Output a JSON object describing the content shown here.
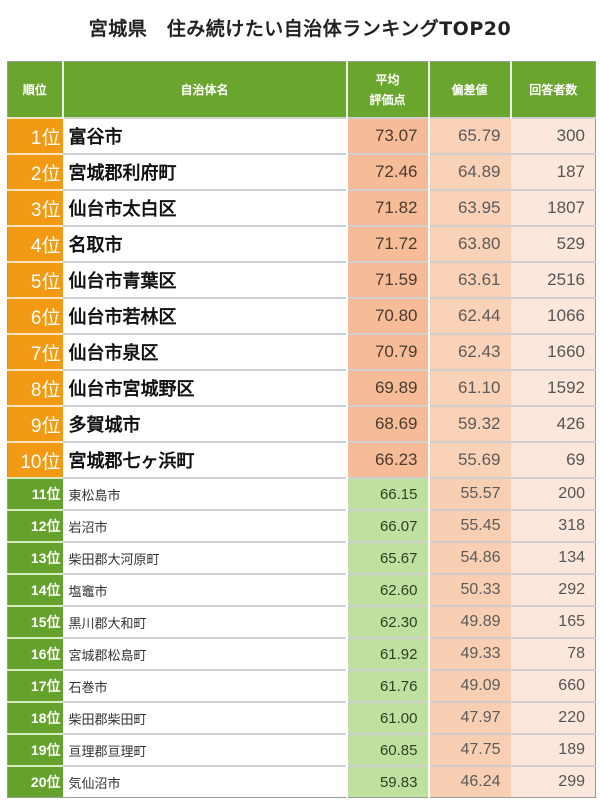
{
  "title": "宮城県　住み続けたい自治体ランキングTOP20",
  "header": {
    "rank": "順位",
    "name": "自治体名",
    "avg_line1": "平均",
    "avg_line2": "評価点",
    "deviation": "偏差値",
    "respondents": "回答者数"
  },
  "colors": {
    "header_green": "#6aa52e",
    "rank_top10_orange": "#f39a14",
    "rank_11_20_green": "#64a22c",
    "avg_top10": "#f5bc97",
    "avg_11_20": "#bfe19f",
    "deviation": "#fad2b8",
    "respondents": "#fbe7dc"
  },
  "rows": [
    {
      "rank": "1位",
      "name": "富谷市",
      "avg": "73.07",
      "dev": "65.79",
      "count": "300"
    },
    {
      "rank": "2位",
      "name": "宮城郡利府町",
      "avg": "72.46",
      "dev": "64.89",
      "count": "187"
    },
    {
      "rank": "3位",
      "name": "仙台市太白区",
      "avg": "71.82",
      "dev": "63.95",
      "count": "1807"
    },
    {
      "rank": "4位",
      "name": "名取市",
      "avg": "71.72",
      "dev": "63.80",
      "count": "529"
    },
    {
      "rank": "5位",
      "name": "仙台市青葉区",
      "avg": "71.59",
      "dev": "63.61",
      "count": "2516"
    },
    {
      "rank": "6位",
      "name": "仙台市若林区",
      "avg": "70.80",
      "dev": "62.44",
      "count": "1066"
    },
    {
      "rank": "7位",
      "name": "仙台市泉区",
      "avg": "70.79",
      "dev": "62.43",
      "count": "1660"
    },
    {
      "rank": "8位",
      "name": "仙台市宮城野区",
      "avg": "69.89",
      "dev": "61.10",
      "count": "1592"
    },
    {
      "rank": "9位",
      "name": "多賀城市",
      "avg": "68.69",
      "dev": "59.32",
      "count": "426"
    },
    {
      "rank": "10位",
      "name": "宮城郡七ヶ浜町",
      "avg": "66.23",
      "dev": "55.69",
      "count": "69"
    },
    {
      "rank": "11位",
      "name": "東松島市",
      "avg": "66.15",
      "dev": "55.57",
      "count": "200"
    },
    {
      "rank": "12位",
      "name": "岩沼市",
      "avg": "66.07",
      "dev": "55.45",
      "count": "318"
    },
    {
      "rank": "13位",
      "name": "柴田郡大河原町",
      "avg": "65.67",
      "dev": "54.86",
      "count": "134"
    },
    {
      "rank": "14位",
      "name": "塩竈市",
      "avg": "62.60",
      "dev": "50.33",
      "count": "292"
    },
    {
      "rank": "15位",
      "name": "黒川郡大和町",
      "avg": "62.30",
      "dev": "49.89",
      "count": "165"
    },
    {
      "rank": "16位",
      "name": "宮城郡松島町",
      "avg": "61.92",
      "dev": "49.33",
      "count": "78"
    },
    {
      "rank": "17位",
      "name": "石巻市",
      "avg": "61.76",
      "dev": "49.09",
      "count": "660"
    },
    {
      "rank": "18位",
      "name": "柴田郡柴田町",
      "avg": "61.00",
      "dev": "47.97",
      "count": "220"
    },
    {
      "rank": "19位",
      "name": "亘理郡亘理町",
      "avg": "60.85",
      "dev": "47.75",
      "count": "189"
    },
    {
      "rank": "20位",
      "name": "気仙沼市",
      "avg": "59.83",
      "dev": "46.24",
      "count": "299"
    }
  ],
  "chart_data": {
    "type": "table",
    "title": "宮城県　住み続けたい自治体ランキングTOP20",
    "columns": [
      "順位",
      "自治体名",
      "平均評価点",
      "偏差値",
      "回答者数"
    ],
    "categories": [
      "富谷市",
      "宮城郡利府町",
      "仙台市太白区",
      "名取市",
      "仙台市青葉区",
      "仙台市若林区",
      "仙台市泉区",
      "仙台市宮城野区",
      "多賀城市",
      "宮城郡七ヶ浜町",
      "東松島市",
      "岩沼市",
      "柴田郡大河原町",
      "塩竈市",
      "黒川郡大和町",
      "宮城郡松島町",
      "石巻市",
      "柴田郡柴田町",
      "亘理郡亘理町",
      "気仙沼市"
    ],
    "series": [
      {
        "name": "平均評価点",
        "values": [
          73.07,
          72.46,
          71.82,
          71.72,
          71.59,
          70.8,
          70.79,
          69.89,
          68.69,
          66.23,
          66.15,
          66.07,
          65.67,
          62.6,
          62.3,
          61.92,
          61.76,
          61.0,
          60.85,
          59.83
        ]
      },
      {
        "name": "偏差値",
        "values": [
          65.79,
          64.89,
          63.95,
          63.8,
          63.61,
          62.44,
          62.43,
          61.1,
          59.32,
          55.69,
          55.57,
          55.45,
          54.86,
          50.33,
          49.89,
          49.33,
          49.09,
          47.97,
          47.75,
          46.24
        ]
      },
      {
        "name": "回答者数",
        "values": [
          300,
          187,
          1807,
          529,
          2516,
          1066,
          1660,
          1592,
          426,
          69,
          200,
          318,
          134,
          292,
          165,
          78,
          660,
          220,
          189,
          299
        ]
      }
    ]
  }
}
